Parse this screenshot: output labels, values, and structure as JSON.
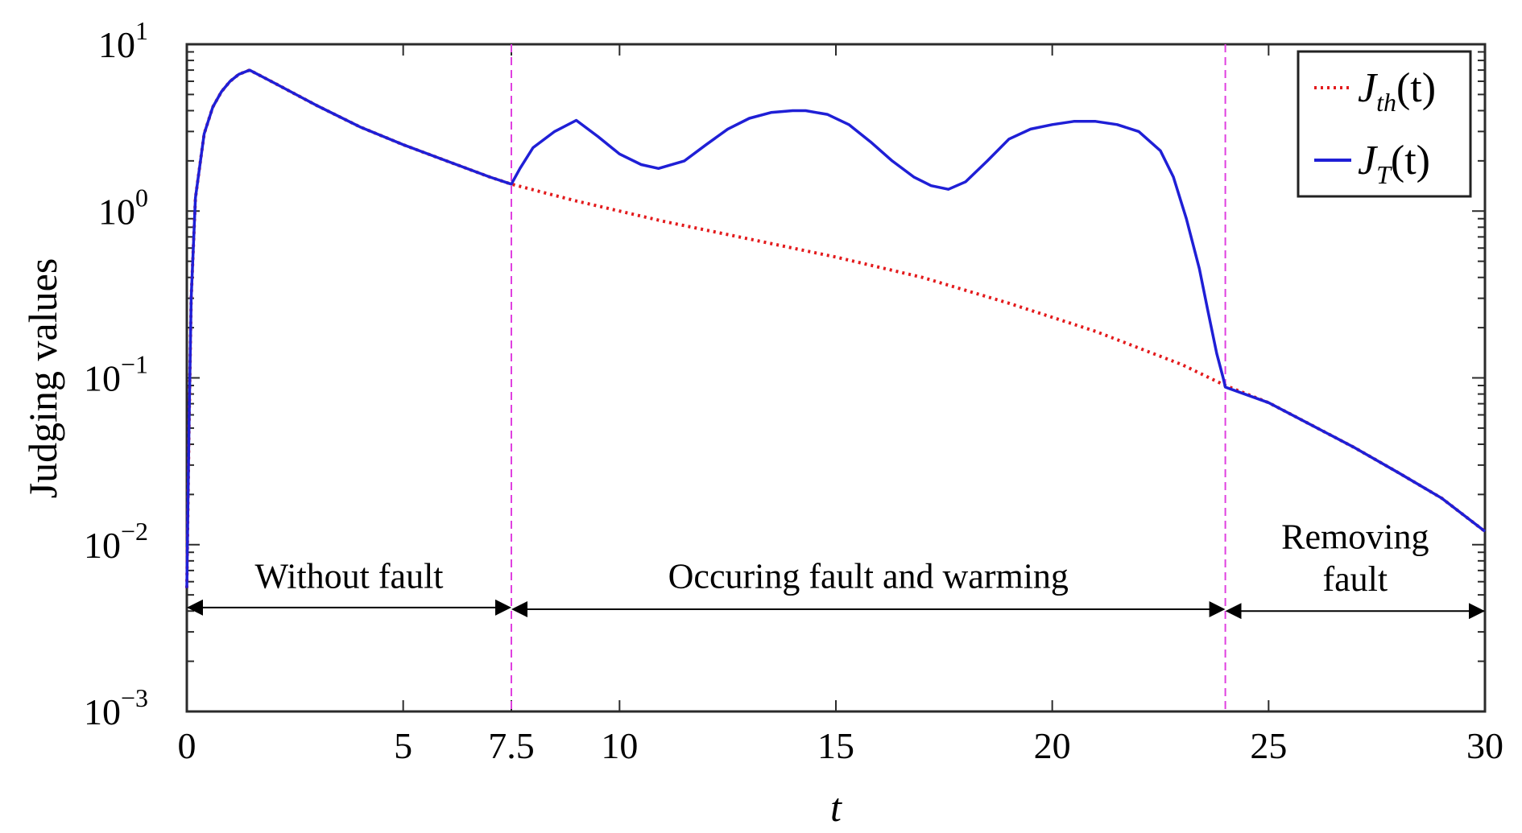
{
  "chart_data": {
    "type": "line",
    "xlabel": "t",
    "ylabel": "Judging values",
    "xlim": [
      0,
      30
    ],
    "ylim": [
      0.001,
      10
    ],
    "yscale": "log",
    "grid": false,
    "legend_position": "top-right",
    "x_ticks": [
      0,
      5,
      7.5,
      10,
      15,
      20,
      25,
      30
    ],
    "x_tick_labels": [
      "0",
      "5",
      "7.5",
      "10",
      "15",
      "20",
      "25",
      "30"
    ],
    "y_ticks": [
      0.001,
      0.01,
      0.1,
      1,
      10
    ],
    "y_tick_labels": [
      {
        "base": "10",
        "exp": "−3"
      },
      {
        "base": "10",
        "exp": "−2"
      },
      {
        "base": "10",
        "exp": "−1"
      },
      {
        "base": "10",
        "exp": "0"
      },
      {
        "base": "10",
        "exp": "1"
      }
    ],
    "series": [
      {
        "name": "J_th(t)",
        "label_main": "J",
        "label_sub": "th",
        "label_arg": "(t)",
        "color": "#e31a1c",
        "style": "dotted",
        "x": [
          0,
          0.05,
          0.1,
          0.2,
          0.4,
          0.6,
          0.8,
          1.0,
          1.2,
          1.45,
          2.0,
          3.0,
          4.0,
          5.0,
          6.0,
          7.0,
          7.5,
          9,
          11,
          13,
          15,
          17,
          19,
          21,
          23,
          24,
          25,
          26,
          27,
          28,
          29,
          30
        ],
        "y": [
          0.0055,
          0.05,
          0.3,
          1.2,
          2.9,
          4.2,
          5.2,
          6.0,
          6.6,
          7.0,
          5.9,
          4.3,
          3.2,
          2.5,
          2.0,
          1.6,
          1.45,
          1.15,
          0.87,
          0.68,
          0.53,
          0.4,
          0.28,
          0.19,
          0.12,
          0.09,
          0.071,
          0.052,
          0.038,
          0.027,
          0.019,
          0.012
        ]
      },
      {
        "name": "J_T(t)",
        "label_main": "J",
        "label_sub": "T",
        "label_arg": "(t)",
        "color": "#1f1fd6",
        "style": "solid",
        "x": [
          0,
          0.05,
          0.1,
          0.2,
          0.4,
          0.6,
          0.8,
          1.0,
          1.2,
          1.45,
          2.0,
          3.0,
          4.0,
          5.0,
          6.0,
          7.0,
          7.5,
          7.7,
          8.0,
          8.5,
          9.0,
          9.5,
          10.0,
          10.5,
          10.9,
          11.5,
          12.0,
          12.5,
          13.0,
          13.5,
          14.0,
          14.3,
          14.8,
          15.3,
          15.8,
          16.3,
          16.8,
          17.2,
          17.6,
          18.0,
          18.5,
          19.0,
          19.5,
          20.0,
          20.5,
          21.0,
          21.5,
          22.0,
          22.5,
          22.8,
          23.1,
          23.4,
          23.6,
          23.8,
          23.95,
          24.0,
          25,
          26,
          27,
          28,
          29,
          30
        ],
        "y": [
          0.0055,
          0.05,
          0.3,
          1.2,
          2.9,
          4.2,
          5.2,
          6.0,
          6.6,
          7.0,
          5.9,
          4.3,
          3.2,
          2.5,
          2.0,
          1.6,
          1.45,
          1.8,
          2.4,
          3.0,
          3.5,
          2.8,
          2.2,
          1.9,
          1.8,
          2.0,
          2.5,
          3.1,
          3.6,
          3.9,
          4.0,
          4.0,
          3.8,
          3.3,
          2.6,
          2.0,
          1.6,
          1.42,
          1.35,
          1.5,
          2.0,
          2.7,
          3.1,
          3.3,
          3.45,
          3.45,
          3.3,
          3.0,
          2.3,
          1.6,
          0.9,
          0.45,
          0.25,
          0.14,
          0.1,
          0.088,
          0.071,
          0.052,
          0.038,
          0.027,
          0.019,
          0.012
        ]
      }
    ],
    "vlines": [
      7.5,
      24
    ],
    "annotations": [
      {
        "text": "Without fault",
        "x_center": 3.75,
        "y": 0.0055
      },
      {
        "text": "Occuring fault and warming",
        "x_center": 15.75,
        "y": 0.0055
      },
      {
        "text": "Removing",
        "x_center": 27,
        "y": 0.0095
      },
      {
        "text": "fault",
        "x_center": 27,
        "y": 0.0053
      }
    ],
    "arrows": [
      {
        "x_from": 0,
        "x_to": 7.5,
        "y": 0.0042
      },
      {
        "x_from": 7.5,
        "x_to": 24,
        "y": 0.0041
      },
      {
        "x_from": 24,
        "x_to": 30,
        "y": 0.004
      }
    ]
  }
}
